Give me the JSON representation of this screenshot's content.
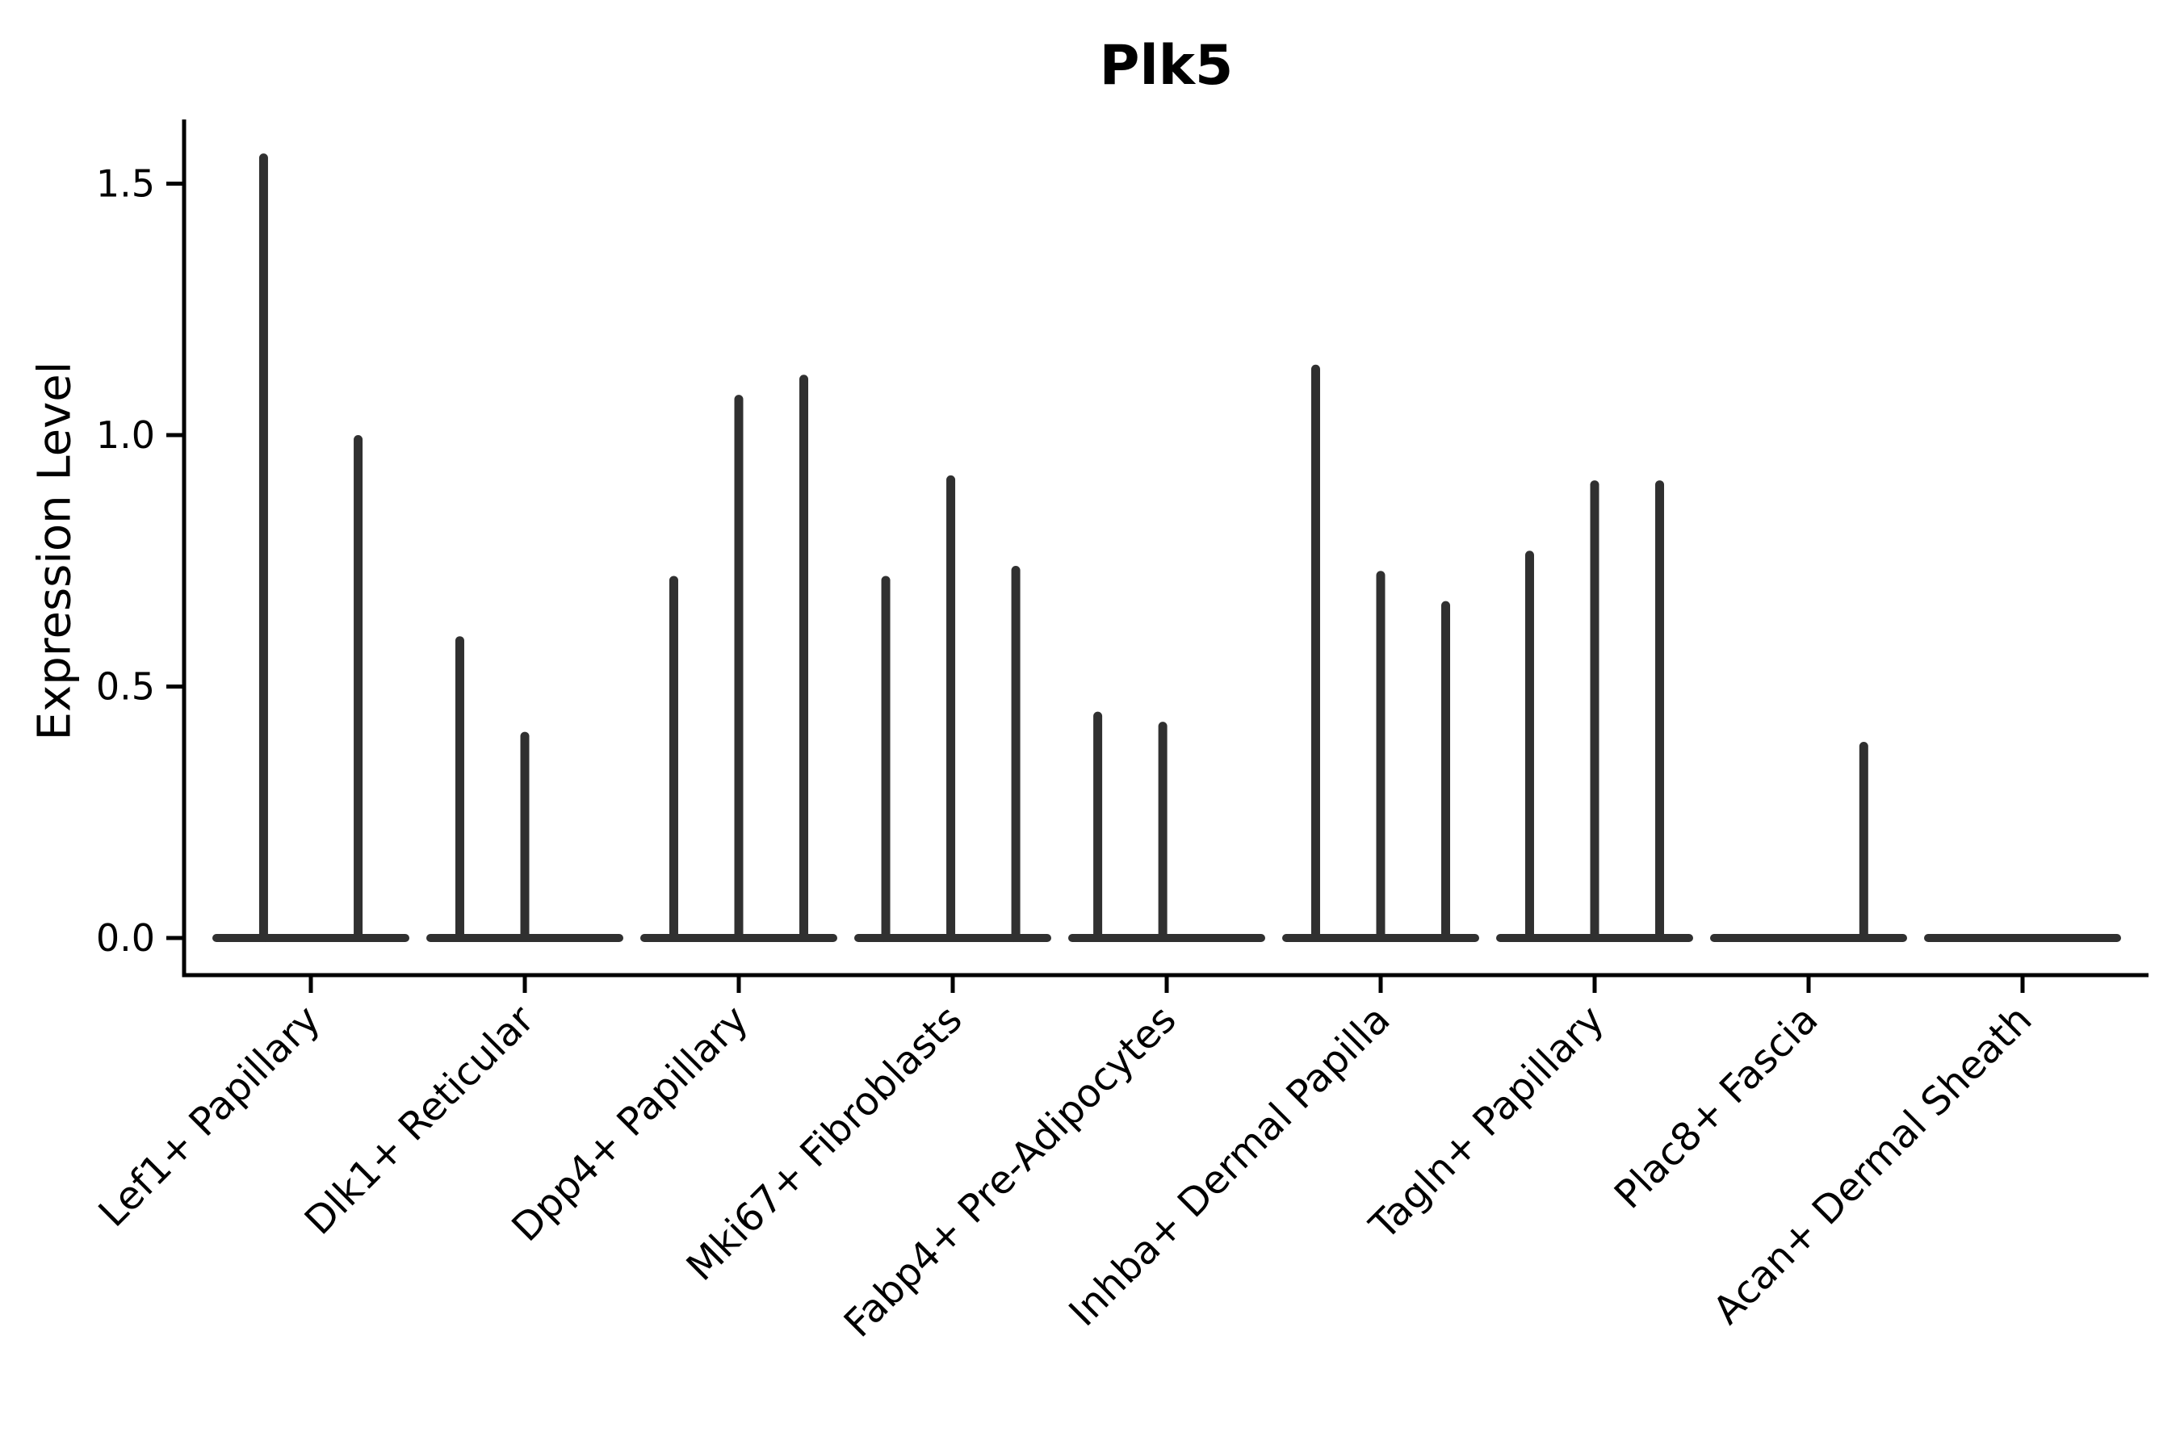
{
  "figure": {
    "background": "#ffffff"
  },
  "chart_data": {
    "type": "violin",
    "title": "Plk5",
    "xlabel": "",
    "ylabel": "Expression Level",
    "yticks": [
      "0.0",
      "0.5",
      "1.0",
      "1.5"
    ],
    "ytick_values": [
      0.0,
      0.5,
      1.0,
      1.5
    ],
    "ylim": [
      -0.074,
      1.628
    ],
    "grid": false,
    "legend": null,
    "violin_color": "#303030",
    "axis_color": "#000000",
    "categories": [
      "Lef1+ Papillary",
      "Dlk1+ Reticular",
      "Dpp4+ Papillary",
      "Mki67+ Fibroblasts",
      "Fabp4+ Pre-Adipocytes",
      "Inhba+ Dermal Papilla",
      "Tagln+ Papillary",
      "Plac8+ Fascia",
      "Acan+ Dermal Sheath"
    ],
    "series": [
      {
        "category": "Lef1+ Papillary",
        "spikes": [
          {
            "x_offset_frac": 0.26,
            "value": 1.56
          },
          {
            "x_offset_frac": 0.74,
            "value": 1.0
          }
        ]
      },
      {
        "category": "Dlk1+ Reticular",
        "spikes": [
          {
            "x_offset_frac": 0.17,
            "value": 0.6
          },
          {
            "x_offset_frac": 0.5,
            "value": 0.41
          }
        ]
      },
      {
        "category": "Dpp4+ Papillary",
        "spikes": [
          {
            "x_offset_frac": 0.17,
            "value": 0.72
          },
          {
            "x_offset_frac": 0.5,
            "value": 1.08
          },
          {
            "x_offset_frac": 0.83,
            "value": 1.12
          }
        ]
      },
      {
        "category": "Mki67+ Fibroblasts",
        "spikes": [
          {
            "x_offset_frac": 0.16,
            "value": 0.72
          },
          {
            "x_offset_frac": 0.49,
            "value": 0.92
          },
          {
            "x_offset_frac": 0.82,
            "value": 0.74
          }
        ]
      },
      {
        "category": "Fabp4+ Pre-Adipocytes",
        "spikes": [
          {
            "x_offset_frac": 0.15,
            "value": 0.45
          },
          {
            "x_offset_frac": 0.48,
            "value": 0.43
          }
        ]
      },
      {
        "category": "Inhba+ Dermal Papilla",
        "spikes": [
          {
            "x_offset_frac": 0.17,
            "value": 1.14
          },
          {
            "x_offset_frac": 0.5,
            "value": 0.73
          },
          {
            "x_offset_frac": 0.83,
            "value": 0.67
          }
        ]
      },
      {
        "category": "Tagln+ Papillary",
        "spikes": [
          {
            "x_offset_frac": 0.17,
            "value": 0.77
          },
          {
            "x_offset_frac": 0.5,
            "value": 0.91
          },
          {
            "x_offset_frac": 0.83,
            "value": 0.91
          }
        ]
      },
      {
        "category": "Plac8+ Fascia",
        "spikes": [
          {
            "x_offset_frac": 0.78,
            "value": 0.39
          }
        ]
      },
      {
        "category": "Acan+ Dermal Sheath",
        "spikes": []
      }
    ]
  }
}
